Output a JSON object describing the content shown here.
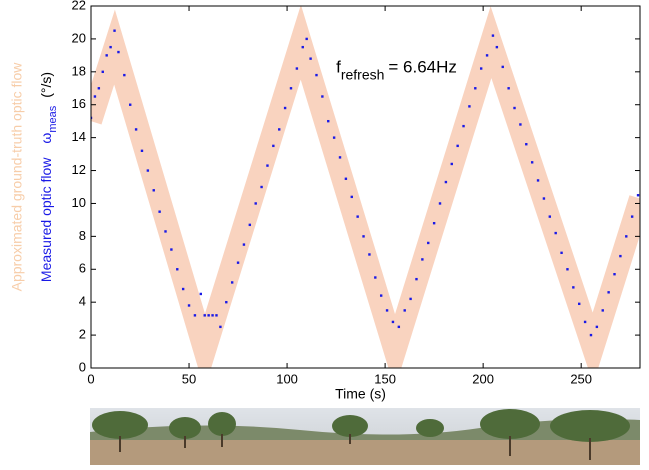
{
  "chart_data": {
    "type": "scatter",
    "xlabel": "Time (s)",
    "ylabel_groundtruth": "Approximated ground-truth optic flow",
    "ylabel_measured": "Measured optic flow",
    "ylabel_symbol": "ω",
    "ylabel_subscript": "meas",
    "ylabel_unit": "(°/s)",
    "annotation": {
      "text": "f",
      "subscript": "refresh",
      "rest": "= 6.64Hz",
      "x": 125,
      "y": 18.2
    },
    "xlim": [
      0,
      280
    ],
    "ylim": [
      0,
      22
    ],
    "xticks": [
      0,
      50,
      100,
      150,
      200,
      250
    ],
    "yticks": [
      0,
      2,
      4,
      6,
      8,
      10,
      12,
      14,
      16,
      18,
      20,
      22
    ],
    "series": [
      {
        "type": "line",
        "color": "#f9d3bf",
        "x": [
          0,
          12,
          58,
          107,
          155,
          204,
          256,
          280
        ],
        "values": [
          15,
          19.5,
          1,
          19.8,
          1,
          19.8,
          1.2,
          10.3
        ]
      },
      {
        "type": "scatter",
        "color": "#1a1ae6",
        "x": [
          0,
          2,
          4,
          6,
          8,
          10,
          12,
          14,
          17,
          20,
          23,
          26,
          29,
          32,
          35,
          38,
          41,
          44,
          47,
          50,
          53,
          56,
          58,
          60,
          62,
          64,
          66,
          69,
          72,
          75,
          78,
          81,
          84,
          87,
          90,
          93,
          96,
          99,
          102,
          105,
          108,
          110,
          112,
          115,
          118,
          121,
          124,
          127,
          130,
          133,
          136,
          139,
          142,
          145,
          148,
          151,
          154,
          157,
          160,
          163,
          166,
          169,
          172,
          175,
          178,
          181,
          184,
          187,
          190,
          193,
          196,
          199,
          202,
          205,
          207,
          210,
          213,
          216,
          219,
          222,
          225,
          228,
          231,
          234,
          237,
          240,
          243,
          246,
          249,
          252,
          255,
          258,
          261,
          264,
          267,
          270,
          273,
          276,
          279
        ],
        "values": [
          15.2,
          16.5,
          17,
          18,
          19,
          19.5,
          20.5,
          19.2,
          17.8,
          16,
          14.5,
          13.2,
          12,
          10.8,
          9.5,
          8.3,
          7.2,
          6,
          4.8,
          3.8,
          3.2,
          4.5,
          3.2,
          3.2,
          3.2,
          3.2,
          2.5,
          4,
          5.2,
          6.4,
          7.5,
          8.7,
          10,
          11,
          12.3,
          13.5,
          14.5,
          15.8,
          17,
          18.2,
          19.5,
          20,
          18.8,
          17.8,
          16.5,
          15,
          14,
          12.8,
          11.5,
          10.4,
          9.2,
          8,
          6.9,
          5.5,
          4.4,
          3.5,
          2.8,
          2.5,
          3.5,
          4.2,
          5.4,
          6.6,
          7.6,
          8.8,
          10,
          11.3,
          12.4,
          13.5,
          14.7,
          15.9,
          17,
          18.2,
          19,
          20.2,
          19.5,
          18.3,
          17,
          15.8,
          14.8,
          13.6,
          12.5,
          11.4,
          10.3,
          9.2,
          8.2,
          7,
          6,
          4.9,
          3.9,
          2.8,
          2,
          2.5,
          3.5,
          4.6,
          5.7,
          6.8,
          8,
          9.2,
          10.5
        ]
      }
    ]
  }
}
